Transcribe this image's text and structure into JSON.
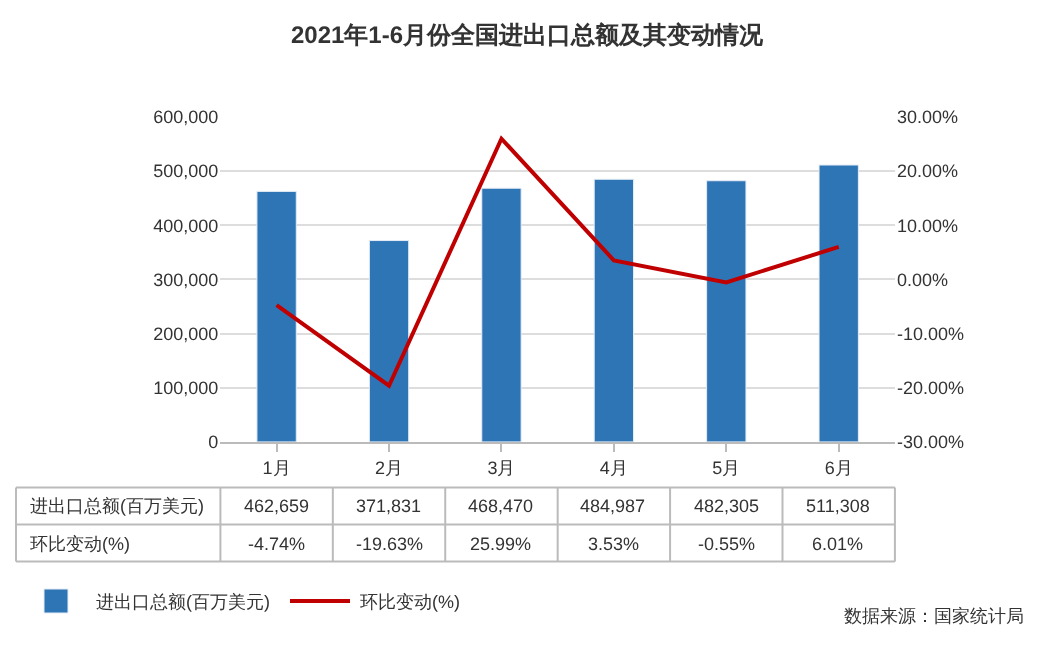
{
  "chart_data": {
    "type": "bar",
    "title": "2021年1-6月份全国进出口总额及其变动情况",
    "categories": [
      "1月",
      "2月",
      "3月",
      "4月",
      "5月",
      "6月"
    ],
    "series": [
      {
        "name": "进出口总额(百万美元)",
        "color": "#2e75b6",
        "values": [
          462659,
          371831,
          468470,
          484987,
          482305,
          511308
        ],
        "value_labels": [
          "462,659",
          "371,831",
          "468,470",
          "484,987",
          "482,305",
          "511,308"
        ]
      },
      {
        "name": "环比变动(%)",
        "type": "line",
        "axis": "y2",
        "color": "#c00000",
        "values": [
          -4.74,
          -19.63,
          25.99,
          3.53,
          -0.55,
          6.01
        ],
        "value_labels": [
          "-4.74%",
          "-19.63%",
          "25.99%",
          "3.53%",
          "-0.55%",
          "6.01%"
        ]
      }
    ],
    "ylim": [
      0,
      600000
    ],
    "yticks": [
      {
        "value": 0,
        "label": "0"
      },
      {
        "value": 100000,
        "label": "100,000"
      },
      {
        "value": 200000,
        "label": "200,000"
      },
      {
        "value": 300000,
        "label": "300,000"
      },
      {
        "value": 400000,
        "label": "400,000"
      },
      {
        "value": 500000,
        "label": "500,000"
      },
      {
        "value": 600000,
        "label": "600,000"
      }
    ],
    "y2lim": [
      -30,
      30
    ],
    "y2ticks": [
      {
        "value": -30,
        "label": "-30.00%"
      },
      {
        "value": -20,
        "label": "-20.00%"
      },
      {
        "value": -10,
        "label": "-10.00%"
      },
      {
        "value": 0,
        "label": "0.00%"
      },
      {
        "value": 10,
        "label": "10.00%"
      },
      {
        "value": 20,
        "label": "20.00%"
      },
      {
        "value": 30,
        "label": "30.00%"
      }
    ],
    "grid": "y",
    "legend": "bottom left",
    "marker": "none",
    "line_style": "solid",
    "annotations": [
      "数据来源：国家统计局"
    ]
  }
}
